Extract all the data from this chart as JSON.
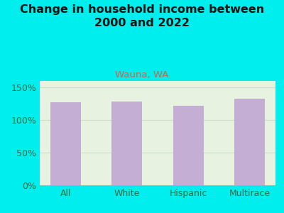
{
  "categories": [
    "All",
    "White",
    "Hispanic",
    "Multirace"
  ],
  "values": [
    127,
    128,
    122,
    133
  ],
  "bar_color": "#c4aed4",
  "title": "Change in household income between\n2000 and 2022",
  "subtitle": "Wauna, WA",
  "subtitle_color": "#cc6644",
  "title_color": "#111111",
  "background_color": "#00eeee",
  "plot_bg_color": "#e8f2e0",
  "ylabel_ticks": [
    0,
    50,
    100,
    150
  ],
  "ylabel_tick_labels": [
    "0%",
    "50%",
    "100%",
    "150%"
  ],
  "ylim": [
    0,
    160
  ],
  "grid_color": "#ccddcc",
  "title_fontsize": 11.5,
  "subtitle_fontsize": 9.5,
  "tick_fontsize": 9,
  "bar_width": 0.5,
  "tick_color": "#446644"
}
